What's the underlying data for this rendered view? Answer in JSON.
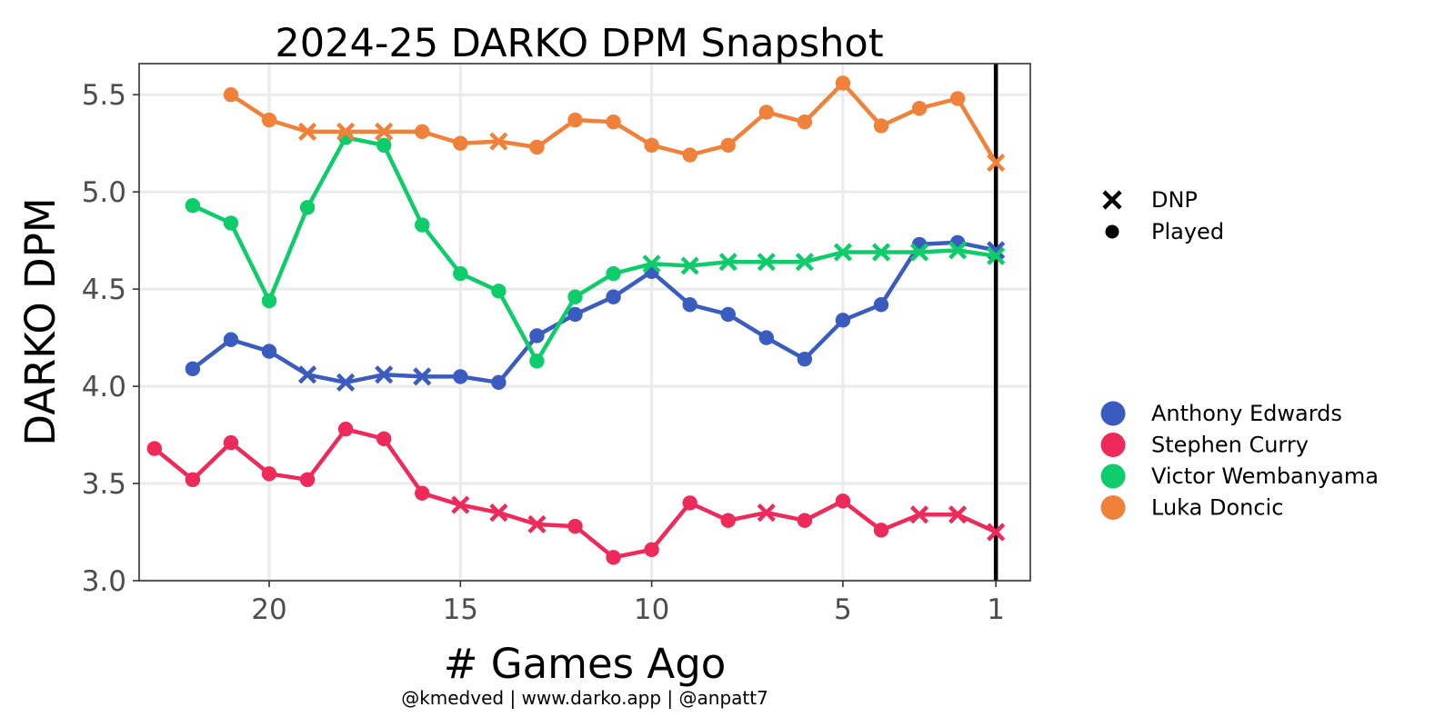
{
  "chart_data": {
    "type": "line",
    "title": "2024-25 DARKO DPM Snapshot",
    "xlabel": "# Games Ago",
    "ylabel": "DARKO DPM",
    "caption": "@kmedved | www.darko.app | @anpatt7",
    "x_reversed": true,
    "xlim": [
      23.4,
      0.1
    ],
    "ylim": [
      3.0,
      5.66
    ],
    "x_ticks": [
      20,
      15,
      10,
      5,
      1
    ],
    "x_tick_labels": [
      "20",
      "15",
      "10",
      "5",
      "1"
    ],
    "y_ticks": [
      3.0,
      3.5,
      4.0,
      4.5,
      5.0,
      5.5
    ],
    "y_tick_labels": [
      "3.0",
      "3.5",
      "4.0",
      "4.5",
      "5.0",
      "5.5"
    ],
    "grid": true,
    "reference_line_x": 1,
    "legend_shape": [
      {
        "label": "DNP",
        "shape": "x"
      },
      {
        "label": "Played",
        "shape": "dot"
      }
    ],
    "legend_color_title": "",
    "series": [
      {
        "name": "Anthony Edwards",
        "color": "#3a5bbf",
        "x": [
          22,
          21,
          20,
          19,
          18,
          17,
          16,
          15,
          14,
          13,
          12,
          11,
          10,
          9,
          8,
          7,
          6,
          5,
          4,
          3,
          2,
          1
        ],
        "y": [
          4.09,
          4.24,
          4.18,
          4.06,
          4.02,
          4.06,
          4.05,
          4.05,
          4.02,
          4.26,
          4.37,
          4.46,
          4.59,
          4.42,
          4.37,
          4.25,
          4.14,
          4.34,
          4.42,
          4.73,
          4.74,
          4.7
        ],
        "dnp": [
          false,
          false,
          false,
          true,
          true,
          true,
          true,
          false,
          false,
          false,
          false,
          false,
          false,
          false,
          false,
          false,
          false,
          false,
          false,
          false,
          false,
          true
        ]
      },
      {
        "name": "Stephen Curry",
        "color": "#ee2a5a",
        "x": [
          23,
          22,
          21,
          20,
          19,
          18,
          17,
          16,
          15,
          14,
          13,
          12,
          11,
          10,
          9,
          8,
          7,
          6,
          5,
          4,
          3,
          2,
          1
        ],
        "y": [
          3.68,
          3.52,
          3.71,
          3.55,
          3.52,
          3.78,
          3.73,
          3.45,
          3.39,
          3.35,
          3.29,
          3.28,
          3.12,
          3.16,
          3.4,
          3.31,
          3.35,
          3.31,
          3.41,
          3.26,
          3.34,
          3.34,
          3.25
        ],
        "dnp": [
          false,
          false,
          false,
          false,
          false,
          false,
          false,
          false,
          true,
          true,
          true,
          false,
          false,
          false,
          false,
          false,
          true,
          false,
          false,
          false,
          true,
          true,
          true
        ]
      },
      {
        "name": "Victor Wembanyama",
        "color": "#0ecc6a",
        "x": [
          22,
          21,
          20,
          19,
          18,
          17,
          16,
          15,
          14,
          13,
          12,
          11,
          10,
          9,
          8,
          7,
          6,
          5,
          4,
          3,
          2,
          1
        ],
        "y": [
          4.93,
          4.84,
          4.44,
          4.92,
          5.28,
          5.24,
          4.83,
          4.58,
          4.49,
          4.13,
          4.46,
          4.58,
          4.63,
          4.62,
          4.64,
          4.64,
          4.64,
          4.69,
          4.69,
          4.69,
          4.7,
          4.67
        ],
        "dnp": [
          false,
          false,
          false,
          false,
          false,
          false,
          false,
          false,
          false,
          false,
          false,
          false,
          true,
          true,
          true,
          true,
          true,
          true,
          true,
          true,
          true,
          true
        ]
      },
      {
        "name": "Luka Doncic",
        "color": "#f0813a",
        "x": [
          21,
          20,
          19,
          18,
          17,
          16,
          15,
          14,
          13,
          12,
          11,
          10,
          9,
          8,
          7,
          6,
          5,
          4,
          3,
          2,
          1
        ],
        "y": [
          5.5,
          5.37,
          5.31,
          5.31,
          5.31,
          5.31,
          5.25,
          5.26,
          5.23,
          5.37,
          5.36,
          5.24,
          5.19,
          5.24,
          5.41,
          5.36,
          5.56,
          5.34,
          5.43,
          5.48,
          5.15
        ],
        "dnp": [
          false,
          false,
          true,
          true,
          true,
          false,
          false,
          true,
          false,
          false,
          false,
          false,
          false,
          false,
          false,
          false,
          false,
          false,
          false,
          false,
          true
        ]
      }
    ]
  }
}
